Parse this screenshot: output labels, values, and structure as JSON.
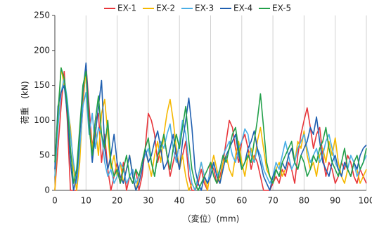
{
  "chart_data": {
    "type": "line",
    "xlabel": "（変位）(mm)",
    "ylabel": "荷重　(kN)",
    "xlim": [
      0,
      100
    ],
    "xticks": [
      0,
      10,
      20,
      30,
      40,
      50,
      60,
      70,
      80,
      90,
      100
    ],
    "ylim": [
      0,
      250
    ],
    "yticks": [
      0,
      50,
      100,
      150,
      200,
      250
    ],
    "grid": "x",
    "legend": "top",
    "x": [
      0,
      1,
      2,
      3,
      4,
      5,
      6,
      7,
      8,
      9,
      10,
      11,
      12,
      13,
      14,
      15,
      16,
      17,
      18,
      19,
      20,
      21,
      22,
      23,
      24,
      25,
      26,
      27,
      28,
      29,
      30,
      31,
      32,
      33,
      34,
      35,
      36,
      37,
      38,
      39,
      40,
      41,
      42,
      43,
      44,
      45,
      46,
      47,
      48,
      49,
      50,
      51,
      52,
      53,
      54,
      55,
      56,
      57,
      58,
      59,
      60,
      61,
      62,
      63,
      64,
      65,
      66,
      67,
      68,
      69,
      70,
      71,
      72,
      73,
      74,
      75,
      76,
      77,
      78,
      79,
      80,
      81,
      82,
      83,
      84,
      85,
      86,
      87,
      88,
      89,
      90,
      91,
      92,
      93,
      94,
      95,
      96,
      97,
      98,
      99,
      100
    ],
    "series": [
      {
        "name": "EX-1",
        "color": "#e8353a",
        "values": [
          0,
          60,
          120,
          170,
          100,
          0,
          0,
          0,
          50,
          120,
          180,
          120,
          60,
          100,
          110,
          40,
          80,
          30,
          0,
          20,
          40,
          10,
          40,
          0,
          20,
          10,
          30,
          0,
          20,
          60,
          110,
          100,
          80,
          40,
          60,
          80,
          50,
          20,
          40,
          60,
          30,
          50,
          70,
          20,
          0,
          0,
          10,
          30,
          10,
          0,
          40,
          30,
          10,
          20,
          40,
          70,
          100,
          90,
          60,
          40,
          70,
          80,
          60,
          30,
          50,
          40,
          20,
          0,
          0,
          0,
          10,
          20,
          10,
          30,
          20,
          40,
          30,
          10,
          50,
          80,
          100,
          118,
          90,
          60,
          80,
          90,
          50,
          20,
          40,
          30,
          10,
          20,
          40,
          30,
          50,
          40,
          20,
          10,
          30,
          20,
          10
        ]
      },
      {
        "name": "EX-2",
        "color": "#f5b800",
        "values": [
          0,
          100,
          175,
          150,
          120,
          90,
          30,
          0,
          40,
          130,
          170,
          100,
          60,
          90,
          50,
          110,
          130,
          80,
          30,
          50,
          20,
          40,
          10,
          30,
          50,
          20,
          0,
          20,
          40,
          60,
          40,
          20,
          50,
          70,
          40,
          80,
          110,
          130,
          100,
          60,
          30,
          50,
          20,
          0,
          10,
          0,
          20,
          40,
          20,
          0,
          30,
          50,
          30,
          10,
          40,
          50,
          30,
          20,
          50,
          70,
          40,
          20,
          50,
          60,
          40,
          70,
          90,
          60,
          30,
          20,
          10,
          30,
          40,
          20,
          30,
          50,
          60,
          40,
          70,
          60,
          85,
          50,
          30,
          40,
          20,
          50,
          60,
          40,
          70,
          50,
          75,
          40,
          20,
          10,
          30,
          20,
          40,
          30,
          10,
          20,
          30
        ]
      },
      {
        "name": "EX-3",
        "color": "#4aaee6",
        "values": [
          20,
          90,
          140,
          160,
          130,
          80,
          40,
          10,
          60,
          120,
          140,
          80,
          110,
          60,
          90,
          80,
          40,
          20,
          30,
          10,
          20,
          40,
          30,
          10,
          20,
          30,
          10,
          20,
          40,
          50,
          60,
          40,
          20,
          50,
          70,
          60,
          80,
          95,
          60,
          40,
          70,
          100,
          80,
          40,
          10,
          0,
          20,
          40,
          20,
          10,
          30,
          40,
          20,
          30,
          50,
          60,
          70,
          50,
          40,
          60,
          70,
          88,
          80,
          50,
          40,
          60,
          50,
          30,
          20,
          10,
          20,
          40,
          30,
          50,
          70,
          50,
          30,
          40,
          60,
          70,
          80,
          60,
          40,
          50,
          60,
          40,
          50,
          70,
          80,
          60,
          40,
          30,
          20,
          40,
          30,
          50,
          40,
          20,
          30,
          40,
          50
        ]
      },
      {
        "name": "EX-4",
        "color": "#1f5fb0",
        "values": [
          30,
          120,
          140,
          150,
          110,
          40,
          0,
          20,
          80,
          140,
          182,
          100,
          40,
          80,
          120,
          157,
          60,
          30,
          50,
          80,
          40,
          20,
          10,
          30,
          50,
          20,
          0,
          10,
          30,
          60,
          40,
          50,
          70,
          85,
          60,
          30,
          40,
          60,
          80,
          50,
          30,
          70,
          100,
          132,
          90,
          30,
          10,
          0,
          20,
          10,
          20,
          40,
          20,
          10,
          30,
          50,
          60,
          70,
          80,
          50,
          30,
          40,
          60,
          70,
          85,
          60,
          40,
          20,
          10,
          0,
          20,
          30,
          20,
          40,
          30,
          50,
          60,
          40,
          30,
          50,
          60,
          70,
          90,
          80,
          105,
          70,
          40,
          30,
          20,
          40,
          50,
          30,
          20,
          40,
          30,
          20,
          40,
          30,
          50,
          60,
          65
        ]
      },
      {
        "name": "EX-5",
        "color": "#22a04a",
        "values": [
          40,
          110,
          175,
          160,
          120,
          60,
          10,
          30,
          90,
          150,
          170,
          90,
          50,
          100,
          135,
          80,
          60,
          100,
          40,
          20,
          30,
          10,
          30,
          50,
          20,
          10,
          30,
          20,
          40,
          60,
          75,
          40,
          20,
          50,
          60,
          80,
          50,
          30,
          60,
          80,
          60,
          90,
          120,
          70,
          30,
          10,
          0,
          10,
          20,
          30,
          40,
          20,
          10,
          30,
          50,
          40,
          60,
          80,
          90,
          60,
          30,
          40,
          50,
          40,
          70,
          100,
          138,
          90,
          40,
          20,
          10,
          30,
          20,
          40,
          50,
          60,
          70,
          40,
          30,
          50,
          40,
          20,
          30,
          50,
          40,
          60,
          70,
          90,
          60,
          40,
          30,
          20,
          40,
          60,
          30,
          20,
          40,
          50,
          30,
          40,
          60
        ]
      }
    ]
  }
}
